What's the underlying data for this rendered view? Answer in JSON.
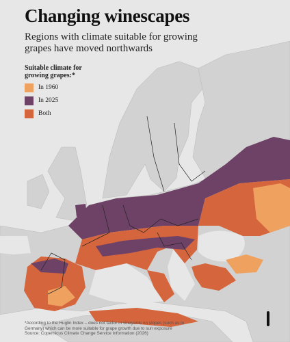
{
  "title": "Changing winescapes",
  "subtitle": "Regions with climate suitable for growing grapes have moved northwards",
  "legend": {
    "title": "Suitable climate for growing grapes:*",
    "items": [
      {
        "label": "In 1960",
        "color": "#efa15f"
      },
      {
        "label": "In 2025",
        "color": "#6e4266"
      },
      {
        "label": "Both",
        "color": "#d5653c"
      }
    ]
  },
  "footnote": "*According to the Huglin Index – does not factor in vineyards on slopes (such as in Germany) which can be more suitable for grape growth due to sun exposure",
  "source": "Source: Copernicus Climate Change Service Information (2026)"
}
